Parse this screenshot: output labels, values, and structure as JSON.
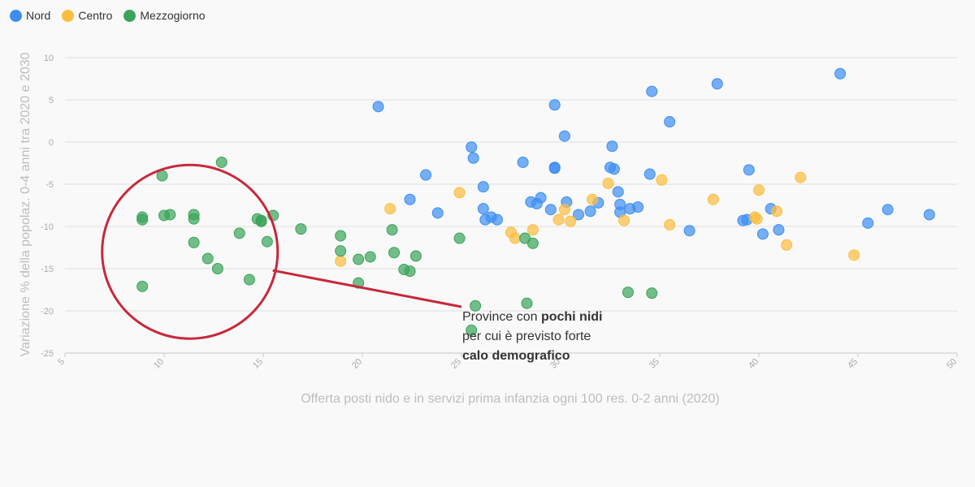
{
  "colors": {
    "nord": "#3d8ef2",
    "centro": "#fdbd3e",
    "mezzogiorno": "#3aa45a",
    "highlight": "#c8283a",
    "grid": "#e4e4e4",
    "axis": "#cccccc"
  },
  "legend": [
    {
      "label": "Nord",
      "color": "#3d8ef2"
    },
    {
      "label": "Centro",
      "color": "#fdbd3e"
    },
    {
      "label": "Mezzogiorno",
      "color": "#3aa45a"
    }
  ],
  "annotation": {
    "part1": "Province con ",
    "bold1": "pochi nidi",
    "part2": " per cui è previsto forte ",
    "bold2": "calo demografico"
  },
  "chart_data": {
    "type": "scatter",
    "xlabel": "Offerta posti nido e in servizi prima infanzia ogni 100 res. 0-2 anni (2020)",
    "ylabel": "Variazione % della popolaz. 0-4 anni tra 2020 e 2030",
    "xlim": [
      5,
      50
    ],
    "ylim": [
      -25,
      10
    ],
    "xticks": [
      5,
      10,
      15,
      20,
      25,
      30,
      35,
      40,
      45,
      50
    ],
    "yticks": [
      10,
      5,
      0,
      -5,
      -10,
      -15,
      -20,
      -25
    ],
    "grid": true,
    "legend_position": "top-left",
    "highlight_circle_center": [
      11.3,
      -13.0
    ],
    "series": [
      {
        "name": "Nord",
        "points": [
          [
            20.8,
            4.2
          ],
          [
            25.5,
            -0.6
          ],
          [
            25.6,
            -1.9
          ],
          [
            23.2,
            -3.9
          ],
          [
            22.4,
            -6.8
          ],
          [
            23.8,
            -8.4
          ],
          [
            26.1,
            -5.3
          ],
          [
            26.1,
            -7.9
          ],
          [
            26.2,
            -9.2
          ],
          [
            26.5,
            -8.9
          ],
          [
            26.8,
            -9.2
          ],
          [
            28.1,
            -2.4
          ],
          [
            28.5,
            -7.1
          ],
          [
            28.8,
            -7.3
          ],
          [
            29.0,
            -6.6
          ],
          [
            29.5,
            -8.0
          ],
          [
            29.7,
            4.4
          ],
          [
            29.7,
            -3.0
          ],
          [
            29.7,
            -3.1
          ],
          [
            30.2,
            0.7
          ],
          [
            30.3,
            -7.1
          ],
          [
            30.9,
            -8.6
          ],
          [
            31.5,
            -8.2
          ],
          [
            31.9,
            -7.2
          ],
          [
            32.5,
            -3.0
          ],
          [
            32.6,
            -0.5
          ],
          [
            32.7,
            -3.2
          ],
          [
            32.9,
            -5.9
          ],
          [
            33.0,
            -7.4
          ],
          [
            33.0,
            -8.3
          ],
          [
            33.5,
            -7.9
          ],
          [
            33.9,
            -7.7
          ],
          [
            34.5,
            -3.8
          ],
          [
            34.6,
            6.0
          ],
          [
            35.5,
            2.4
          ],
          [
            36.5,
            -10.5
          ],
          [
            37.9,
            6.9
          ],
          [
            39.2,
            -9.3
          ],
          [
            39.4,
            -9.2
          ],
          [
            39.5,
            -3.3
          ],
          [
            40.2,
            -10.9
          ],
          [
            40.6,
            -7.9
          ],
          [
            41.0,
            -10.4
          ],
          [
            44.1,
            8.1
          ],
          [
            45.5,
            -9.6
          ],
          [
            46.5,
            -8.0
          ],
          [
            48.6,
            -8.6
          ]
        ]
      },
      {
        "name": "Centro",
        "points": [
          [
            18.9,
            -14.1
          ],
          [
            21.4,
            -7.9
          ],
          [
            24.9,
            -6.0
          ],
          [
            27.5,
            -10.7
          ],
          [
            27.7,
            -11.4
          ],
          [
            28.6,
            -10.4
          ],
          [
            29.9,
            -9.2
          ],
          [
            30.2,
            -8.0
          ],
          [
            30.5,
            -9.4
          ],
          [
            31.6,
            -6.8
          ],
          [
            32.4,
            -4.9
          ],
          [
            33.2,
            -9.3
          ],
          [
            35.1,
            -4.5
          ],
          [
            35.5,
            -9.8
          ],
          [
            37.7,
            -6.8
          ],
          [
            39.8,
            -8.9
          ],
          [
            39.9,
            -9.1
          ],
          [
            40.0,
            -5.7
          ],
          [
            40.9,
            -8.2
          ],
          [
            41.4,
            -12.2
          ],
          [
            42.1,
            -4.2
          ],
          [
            44.8,
            -13.4
          ]
        ]
      },
      {
        "name": "Mezzogiorno",
        "points": [
          [
            8.9,
            -8.9
          ],
          [
            8.9,
            -9.2
          ],
          [
            8.9,
            -17.1
          ],
          [
            9.9,
            -4.0
          ],
          [
            10.0,
            -8.7
          ],
          [
            10.3,
            -8.6
          ],
          [
            11.5,
            -8.6
          ],
          [
            11.5,
            -9.1
          ],
          [
            11.5,
            -11.9
          ],
          [
            12.2,
            -13.8
          ],
          [
            12.7,
            -15.0
          ],
          [
            12.9,
            -2.4
          ],
          [
            13.8,
            -10.8
          ],
          [
            14.3,
            -16.3
          ],
          [
            14.7,
            -9.1
          ],
          [
            14.9,
            -9.3
          ],
          [
            14.9,
            -9.4
          ],
          [
            15.2,
            -11.8
          ],
          [
            15.5,
            -8.7
          ],
          [
            16.9,
            -10.3
          ],
          [
            18.9,
            -11.1
          ],
          [
            18.9,
            -12.9
          ],
          [
            19.8,
            -13.9
          ],
          [
            19.8,
            -16.7
          ],
          [
            20.4,
            -13.6
          ],
          [
            21.5,
            -10.4
          ],
          [
            21.6,
            -13.1
          ],
          [
            22.1,
            -15.1
          ],
          [
            22.4,
            -15.3
          ],
          [
            22.7,
            -13.5
          ],
          [
            24.9,
            -11.4
          ],
          [
            25.5,
            -22.3
          ],
          [
            25.7,
            -19.4
          ],
          [
            28.2,
            -11.4
          ],
          [
            28.3,
            -19.1
          ],
          [
            28.6,
            -12.0
          ],
          [
            33.4,
            -17.8
          ],
          [
            34.6,
            -17.9
          ]
        ]
      }
    ]
  }
}
